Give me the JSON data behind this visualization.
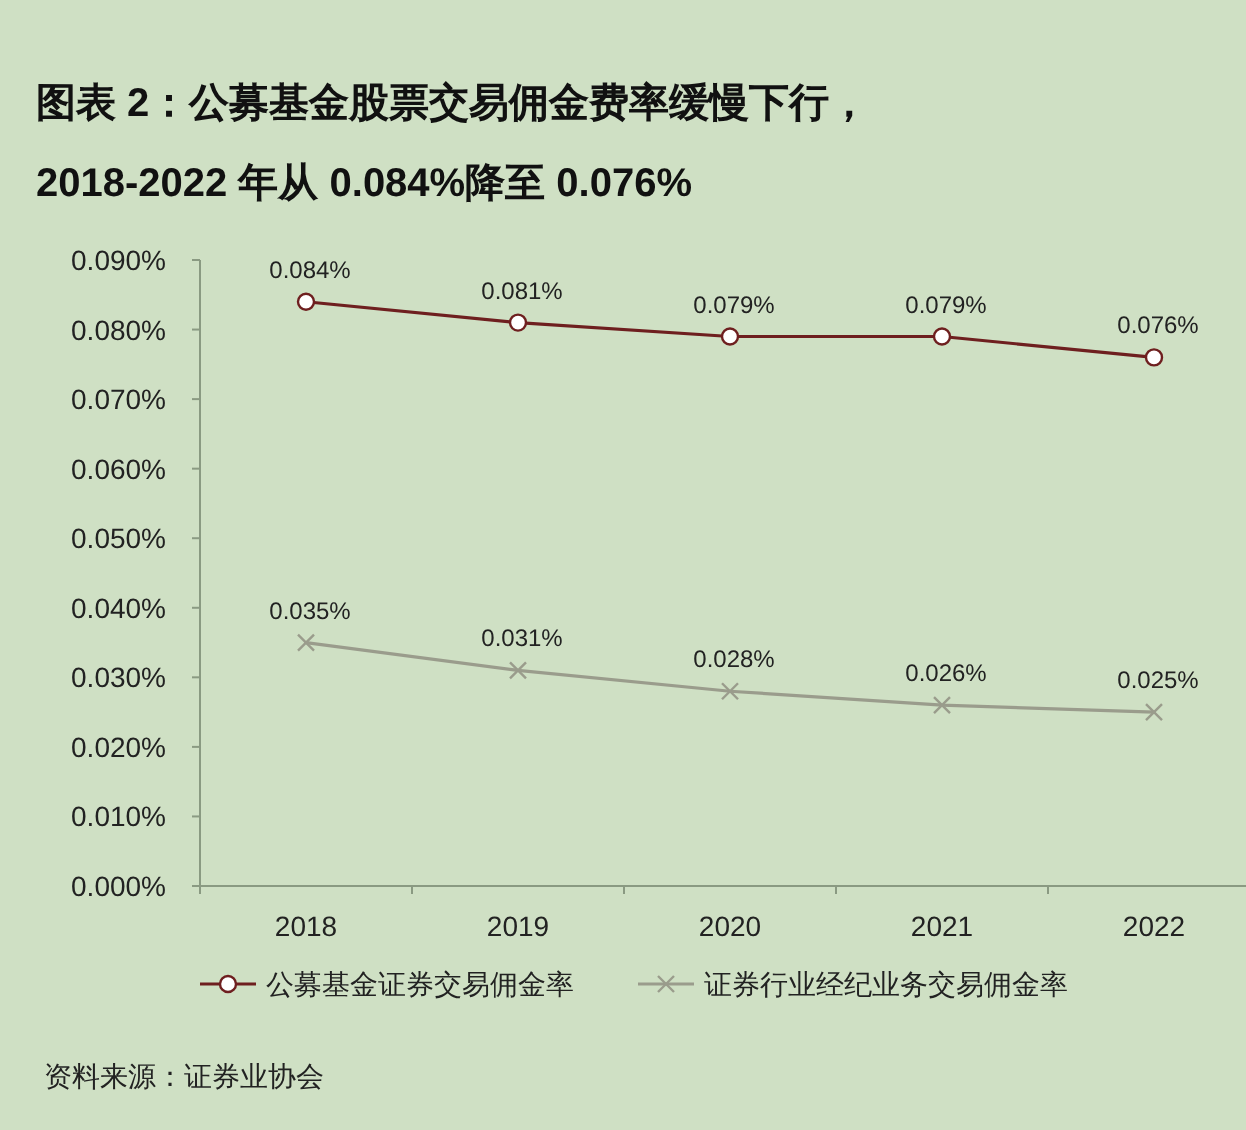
{
  "chart_data": {
    "type": "line",
    "title": "图表 2：公募基金股票交易佣金费率缓慢下行，",
    "subtitle": "2018-2022 年从 0.084%降至 0.076%",
    "categories": [
      "2018",
      "2019",
      "2020",
      "2021",
      "2022"
    ],
    "series": [
      {
        "name": "公募基金证券交易佣金率",
        "color": "#6e1f1f",
        "marker": "circle",
        "values": [
          0.084,
          0.081,
          0.079,
          0.079,
          0.076
        ],
        "value_labels": [
          "0.084%",
          "0.081%",
          "0.079%",
          "0.079%",
          "0.076%"
        ]
      },
      {
        "name": "证券行业经纪业务交易佣金率",
        "color": "#9a9c8c",
        "marker": "cross",
        "values": [
          0.035,
          0.031,
          0.028,
          0.026,
          0.025
        ],
        "value_labels": [
          "0.035%",
          "0.031%",
          "0.028%",
          "0.026%",
          "0.025%"
        ]
      }
    ],
    "ylim": [
      0,
      0.09
    ],
    "yticks": [
      {
        "value": 0,
        "label": "0.000%"
      },
      {
        "value": 0.01,
        "label": "0.010%"
      },
      {
        "value": 0.02,
        "label": "0.020%"
      },
      {
        "value": 0.03,
        "label": "0.030%"
      },
      {
        "value": 0.04,
        "label": "0.040%"
      },
      {
        "value": 0.05,
        "label": "0.050%"
      },
      {
        "value": 0.06,
        "label": "0.060%"
      },
      {
        "value": 0.07,
        "label": "0.070%"
      },
      {
        "value": 0.08,
        "label": "0.080%"
      },
      {
        "value": 0.09,
        "label": "0.090%"
      }
    ],
    "grid": false,
    "legend": "bottom",
    "line_style": "solid",
    "annotations": [
      "资料来源：证券业协会"
    ]
  }
}
